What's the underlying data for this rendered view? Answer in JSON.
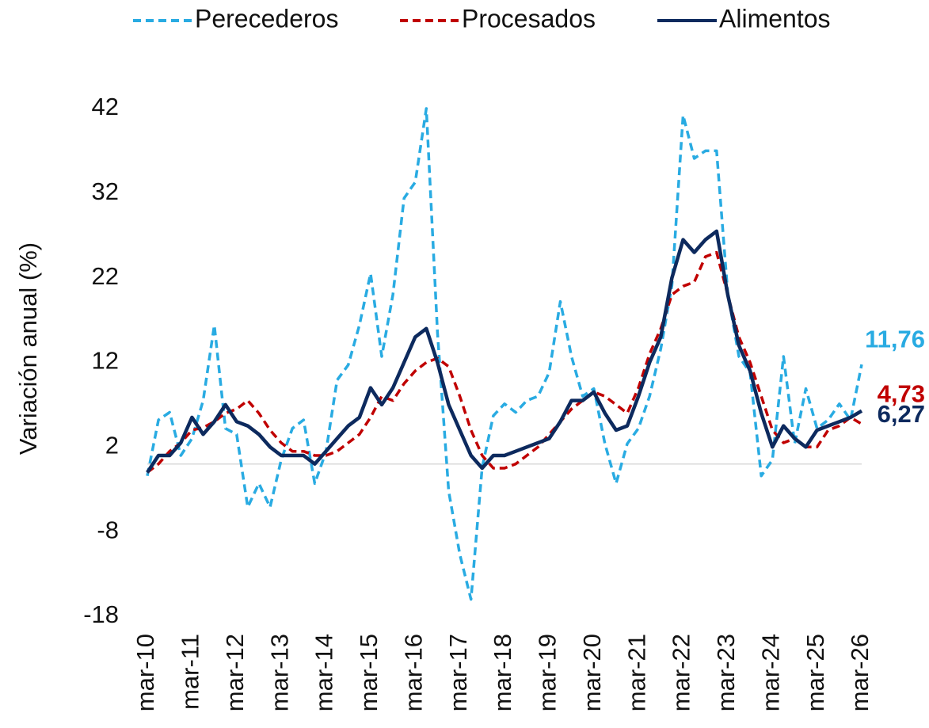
{
  "chart_data": {
    "type": "line",
    "ylabel": "Variación anual (%)",
    "categories": [
      "mar-10",
      null,
      null,
      null,
      "mar-11",
      null,
      null,
      null,
      "mar-12",
      null,
      null,
      null,
      "mar-13",
      null,
      null,
      null,
      "mar-14",
      null,
      null,
      null,
      "mar-15",
      null,
      null,
      null,
      "mar-16",
      null,
      null,
      null,
      "mar-17",
      null,
      null,
      null,
      "mar-18",
      null,
      null,
      null,
      "mar-19",
      null,
      null,
      null,
      "mar-20",
      null,
      null,
      null,
      "mar-21",
      null,
      null,
      null,
      "mar-22",
      null,
      null,
      null,
      "mar-23",
      null,
      null,
      null,
      "mar-24",
      null,
      null,
      null,
      "mar-25",
      null,
      null,
      null,
      "mar-26"
    ],
    "ylim": [
      -18,
      42
    ],
    "yticks": [
      -18,
      -8,
      2,
      12,
      22,
      32,
      42
    ],
    "zero_line": true,
    "series": [
      {
        "name": "Perecederos",
        "color": "#29abe2",
        "dashed": true,
        "values": [
          -1.4,
          5.2,
          6.1,
          1,
          3,
          7.5,
          16.4,
          4.2,
          3.5,
          -5.1,
          -2.3,
          -5.1,
          0.5,
          4.2,
          5.2,
          -2.3,
          1.4,
          9.9,
          11.7,
          16.4,
          22.5,
          12.7,
          20,
          31.4,
          33.3,
          42,
          15.5,
          -3.2,
          -10.7,
          -16,
          -0.4,
          5.7,
          7.1,
          6.1,
          7.5,
          8,
          10.8,
          19.2,
          12.7,
          8,
          8.9,
          2.4,
          -2.3,
          2.4,
          4.2,
          8,
          13.6,
          21.1,
          41.2,
          36.1,
          37,
          37,
          20.2,
          12.7,
          10.8,
          -1.4,
          0.5,
          12.7,
          2.4,
          8.9,
          4.2,
          5.2,
          7.1,
          5.2,
          11.76
        ],
        "value_labels": [
          null,
          null,
          null,
          null,
          null,
          null,
          null,
          null,
          null,
          null,
          null,
          null,
          null,
          null,
          null,
          null,
          null,
          null,
          null,
          null,
          null,
          null,
          null,
          null,
          null,
          null,
          null,
          null,
          null,
          null,
          null,
          null,
          null,
          null,
          null,
          null,
          null,
          null,
          null,
          null,
          null,
          null,
          null,
          null,
          null,
          null,
          null,
          null,
          null,
          null,
          null,
          null,
          null,
          null,
          null,
          null,
          null,
          null,
          null,
          null,
          null,
          null,
          null,
          null,
          "11,76"
        ]
      },
      {
        "name": "Procesados",
        "color": "#c00000",
        "dashed": true,
        "values": [
          -1,
          0,
          1.5,
          2.5,
          4,
          4.3,
          5,
          6,
          6.5,
          7.5,
          6,
          4,
          2.5,
          1.5,
          1.5,
          1,
          1,
          1.5,
          2.5,
          3.5,
          5.5,
          8,
          7.5,
          9.5,
          11,
          12,
          12.5,
          11.5,
          8,
          4,
          1,
          -0.5,
          -0.5,
          0,
          1,
          2,
          3.5,
          5,
          6.5,
          7.5,
          8.5,
          8,
          7,
          6,
          9,
          13,
          16,
          20,
          21,
          21.5,
          24.5,
          25,
          20,
          15,
          12,
          8,
          4,
          2.5,
          3,
          2,
          2,
          4,
          4.5,
          5.5,
          4.73
        ],
        "value_labels": [
          null,
          null,
          null,
          null,
          null,
          null,
          null,
          null,
          null,
          null,
          null,
          null,
          null,
          null,
          null,
          null,
          null,
          null,
          null,
          null,
          null,
          null,
          null,
          null,
          null,
          null,
          null,
          null,
          null,
          null,
          null,
          null,
          null,
          null,
          null,
          null,
          null,
          null,
          null,
          null,
          null,
          null,
          null,
          null,
          null,
          null,
          null,
          null,
          null,
          null,
          null,
          null,
          null,
          null,
          null,
          null,
          null,
          null,
          null,
          null,
          null,
          null,
          null,
          null,
          "4,73"
        ]
      },
      {
        "name": "Alimentos",
        "color": "#0d2a5e",
        "dashed": false,
        "values": [
          -1,
          1,
          1,
          2.5,
          5.5,
          3.5,
          5,
          7,
          5,
          4.5,
          3.5,
          2,
          1,
          1,
          1,
          0,
          1.5,
          3,
          4.5,
          5.5,
          9,
          7,
          9,
          12,
          15,
          16,
          12,
          7,
          4,
          1,
          -0.5,
          1,
          1,
          1.5,
          2,
          2.5,
          3,
          5,
          7.5,
          7.5,
          8.5,
          6,
          4,
          4.5,
          8,
          12,
          15,
          22,
          26.5,
          25,
          26.5,
          27.5,
          20,
          14,
          11,
          6,
          2,
          4.5,
          3,
          2,
          4,
          4.5,
          5,
          5.5,
          6.27
        ],
        "value_labels": [
          null,
          null,
          null,
          null,
          null,
          null,
          null,
          null,
          null,
          null,
          null,
          null,
          null,
          null,
          null,
          null,
          null,
          null,
          null,
          null,
          null,
          null,
          null,
          null,
          null,
          null,
          null,
          null,
          null,
          null,
          null,
          null,
          null,
          null,
          null,
          null,
          null,
          null,
          null,
          null,
          null,
          null,
          null,
          null,
          null,
          null,
          null,
          null,
          null,
          null,
          null,
          null,
          null,
          null,
          null,
          null,
          null,
          null,
          null,
          null,
          null,
          null,
          null,
          null,
          "6,27"
        ]
      }
    ]
  }
}
